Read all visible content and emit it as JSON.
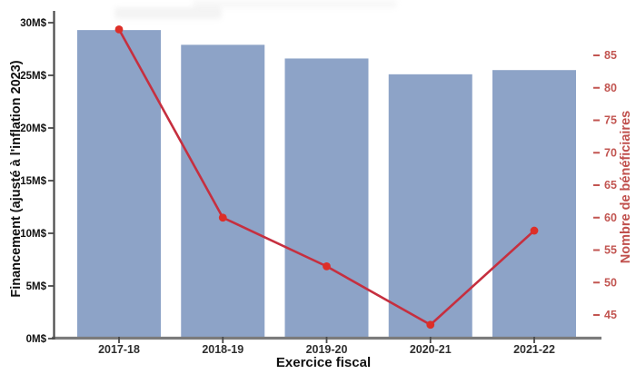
{
  "chart_data": {
    "type": "bar",
    "title": "",
    "categories": [
      "2017-18",
      "2018-19",
      "2019-20",
      "2020-21",
      "2021-22"
    ],
    "series": [
      {
        "name": "Financement (ajusté à l'inflation 2023)",
        "type": "bar",
        "axis": "left",
        "unit": "M$",
        "color": "#8da3c7",
        "values": [
          29.3,
          27.9,
          26.6,
          25.1,
          25.5
        ]
      },
      {
        "name": "Nombre de bénéficiaires",
        "type": "line",
        "axis": "right",
        "color": "#c62f3f",
        "marker_color": "#dd2f28",
        "values": [
          89,
          60,
          52.5,
          43.5,
          58
        ]
      }
    ],
    "x_axis": {
      "label": "Exercice fiscal",
      "tick_labels": [
        "2017-18",
        "2018-19",
        "2019-20",
        "2020-21",
        "2021-22"
      ],
      "color": "#2e2e2e"
    },
    "left_axis": {
      "label": "Financement (ajusté à l'inflation 2023)",
      "min": 0,
      "max": 30,
      "tick_step": 5,
      "tick_labels": [
        "0M$",
        "5M$",
        "10M$",
        "15M$",
        "20M$",
        "25M$",
        "30M$"
      ],
      "color": "#111111"
    },
    "right_axis": {
      "label": "Nombre de bénéficiaires",
      "min": 45,
      "max": 85,
      "tick_step": 5,
      "tick_labels": [
        "45",
        "50",
        "55",
        "60",
        "65",
        "70",
        "75",
        "80",
        "85"
      ],
      "color": "#c25551",
      "title_color": "#c0504d"
    },
    "grid": false,
    "legend": "none"
  }
}
